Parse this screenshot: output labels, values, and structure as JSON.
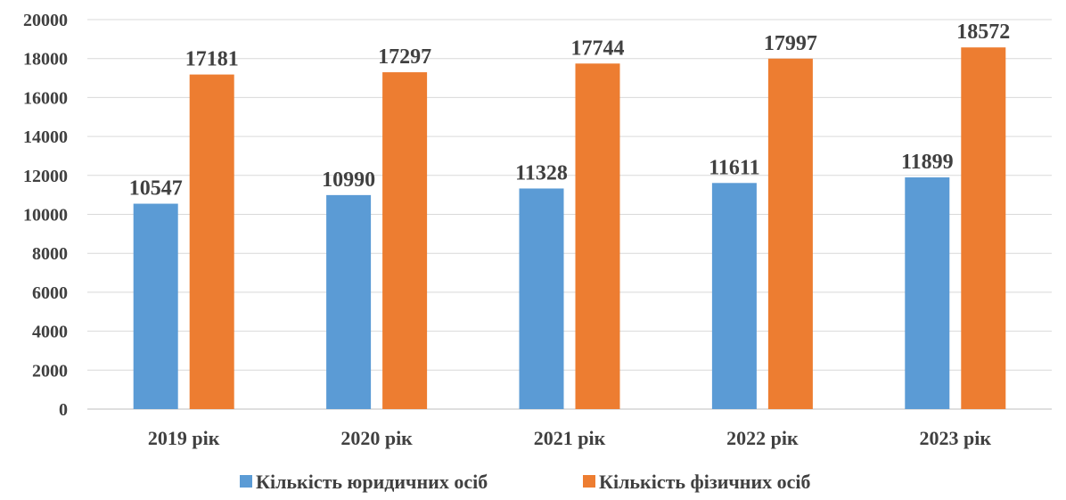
{
  "chart_data": {
    "type": "bar",
    "categories": [
      "2019 рік",
      "2020 рік",
      "2021 рік",
      "2022 рік",
      "2023 рік"
    ],
    "series": [
      {
        "name": "Кількість юридичних осіб",
        "values": [
          10547,
          10990,
          11328,
          11611,
          11899
        ],
        "color": "#5B9BD5"
      },
      {
        "name": "Кількість фізичних осіб",
        "values": [
          17181,
          17297,
          17744,
          17997,
          18572
        ],
        "color": "#ED7D31"
      }
    ],
    "ylim": [
      0,
      20000
    ],
    "yticks": [
      "0",
      "2000",
      "4000",
      "6000",
      "8000",
      "10000",
      "12000",
      "14000",
      "16000",
      "18000",
      "20000"
    ],
    "grid": true,
    "legend": "bottom",
    "data_labels": true
  }
}
